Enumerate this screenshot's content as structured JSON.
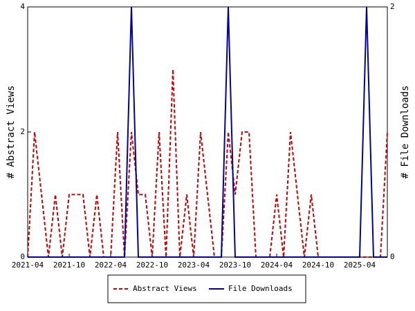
{
  "chart_data": {
    "type": "line",
    "categories": [
      "2021-04",
      null,
      null,
      null,
      null,
      null,
      "2021-10",
      null,
      null,
      null,
      null,
      null,
      "2022-04",
      null,
      null,
      null,
      null,
      null,
      "2022-10",
      null,
      null,
      null,
      null,
      null,
      "2023-04",
      null,
      null,
      null,
      null,
      null,
      "2023-10",
      null,
      null,
      null,
      null,
      null,
      "2024-04",
      null,
      null,
      null,
      null,
      null,
      "2024-10",
      null,
      null,
      null,
      null,
      null,
      "2025-04",
      null,
      null,
      null,
      null
    ],
    "y_label": "# Abstract Views",
    "y2_label": "# File Downloads",
    "ylim": [
      0,
      4
    ],
    "yticks": [
      0,
      2,
      4
    ],
    "y2lim": [
      0,
      2
    ],
    "y2ticks": [
      0,
      2
    ],
    "legend": "bottom",
    "series": [
      {
        "name": "Abstract Views",
        "color": "#cc0000",
        "dashed": true,
        "values": [
          0,
          2,
          1,
          0,
          1,
          0,
          1,
          1,
          1,
          0,
          1,
          0,
          0,
          2,
          0,
          2,
          1,
          1,
          0,
          2,
          0,
          3,
          0,
          1,
          0,
          2,
          1,
          0,
          0,
          2,
          1,
          2,
          2,
          0,
          0,
          0,
          1,
          0,
          2,
          1,
          0,
          1,
          0,
          0,
          0,
          0,
          0,
          0,
          0,
          0,
          0,
          0,
          2
        ]
      },
      {
        "name": "File Downloads",
        "color": "#0000aa",
        "axis": "y2",
        "dashed": false,
        "values": [
          0,
          0,
          0,
          0,
          0,
          0,
          0,
          0,
          0,
          0,
          0,
          0,
          0,
          0,
          0,
          2,
          0,
          0,
          0,
          0,
          0,
          0,
          0,
          0,
          0,
          0,
          0,
          0,
          0,
          2,
          0,
          0,
          0,
          0,
          0,
          0,
          0,
          0,
          0,
          0,
          0,
          0,
          0,
          0,
          0,
          0,
          0,
          0,
          0,
          2,
          0,
          0,
          0
        ]
      }
    ]
  }
}
